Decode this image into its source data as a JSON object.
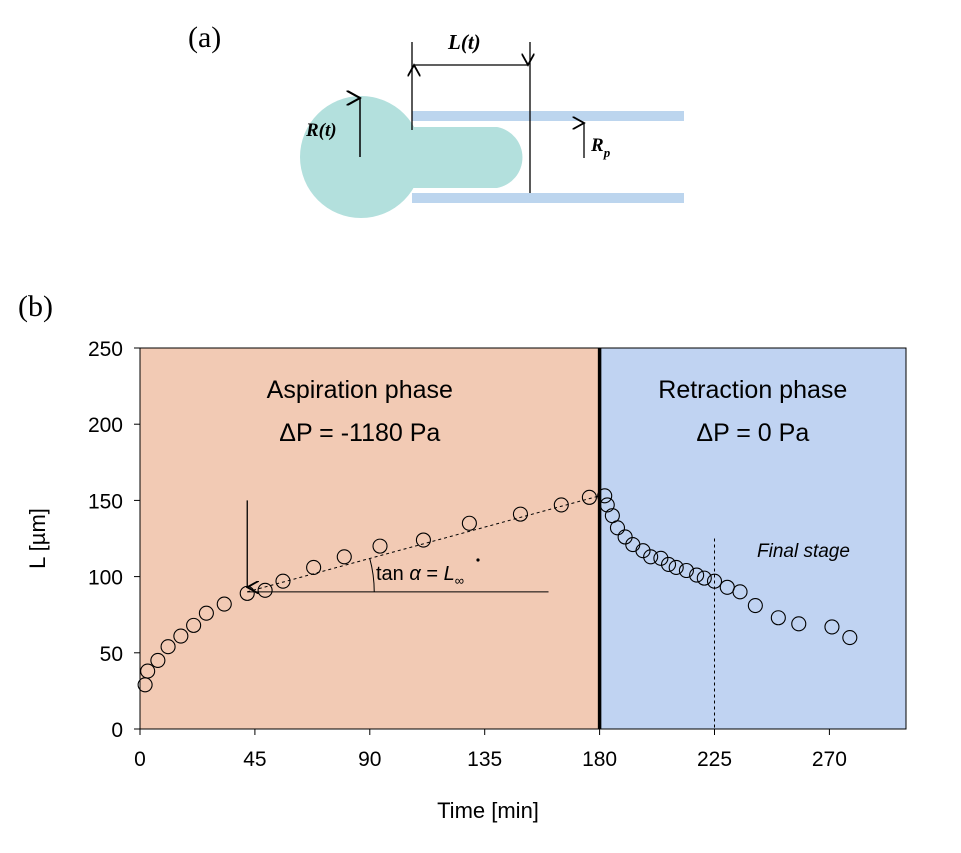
{
  "panel_a": {
    "label": "(a)",
    "length_label": "L(t)",
    "radius_label": "R(t)",
    "pipette_radius_label_main": "R",
    "pipette_radius_label_sub": "p",
    "colors": {
      "cell": "#b3e0dd",
      "pipette": "#bcd5ee"
    }
  },
  "panel_b": {
    "label": "(b)",
    "aspiration_title": "Aspiration phase",
    "aspiration_pressure": "ΔP = -1180 Pa",
    "retraction_title": "Retraction phase",
    "retraction_pressure": "ΔP = 0 Pa",
    "final_stage_label": "Final stage",
    "slope_annotation_prefix": "tan",
    "slope_annotation_alpha": "α",
    "slope_annotation_eq": "=",
    "slope_annotation_L": "L",
    "slope_annotation_sub": "∞",
    "colors": {
      "aspiration_bg": "#f2cab4",
      "retraction_bg": "#c0d3f2"
    }
  },
  "chart_data": {
    "type": "scatter",
    "title": "",
    "xlabel": "Time [min]",
    "ylabel": "L [µm]",
    "xlim": [
      0,
      300
    ],
    "ylim": [
      0,
      250
    ],
    "xticks": [
      0,
      45,
      90,
      135,
      180,
      225,
      270
    ],
    "yticks": [
      0,
      50,
      100,
      150,
      200,
      250
    ],
    "phase_boundary_x": 180,
    "final_stage_x": 225,
    "arrow_x": 42,
    "slope_line": {
      "x": [
        42,
        180
      ],
      "y": [
        90,
        153
      ]
    },
    "baseline": {
      "x": [
        42,
        160
      ],
      "y": [
        90,
        90
      ]
    },
    "series": [
      {
        "x": [
          2,
          3,
          7,
          11,
          16,
          21,
          26,
          33,
          42,
          49,
          56,
          68,
          80,
          94,
          111,
          129,
          149,
          165,
          176,
          182,
          183,
          185,
          187,
          190,
          193,
          197,
          200,
          204,
          207,
          210,
          214,
          218,
          221,
          225,
          230,
          235,
          241,
          250,
          258,
          271,
          278
        ],
        "y": [
          29,
          38,
          45,
          54,
          61,
          68,
          76,
          82,
          89,
          91,
          97,
          106,
          113,
          120,
          124,
          135,
          141,
          147,
          152,
          153,
          147,
          140,
          132,
          126,
          121,
          117,
          113,
          112,
          108,
          106,
          104,
          101,
          99,
          97,
          93,
          90,
          81,
          73,
          69,
          67,
          60
        ]
      }
    ]
  }
}
